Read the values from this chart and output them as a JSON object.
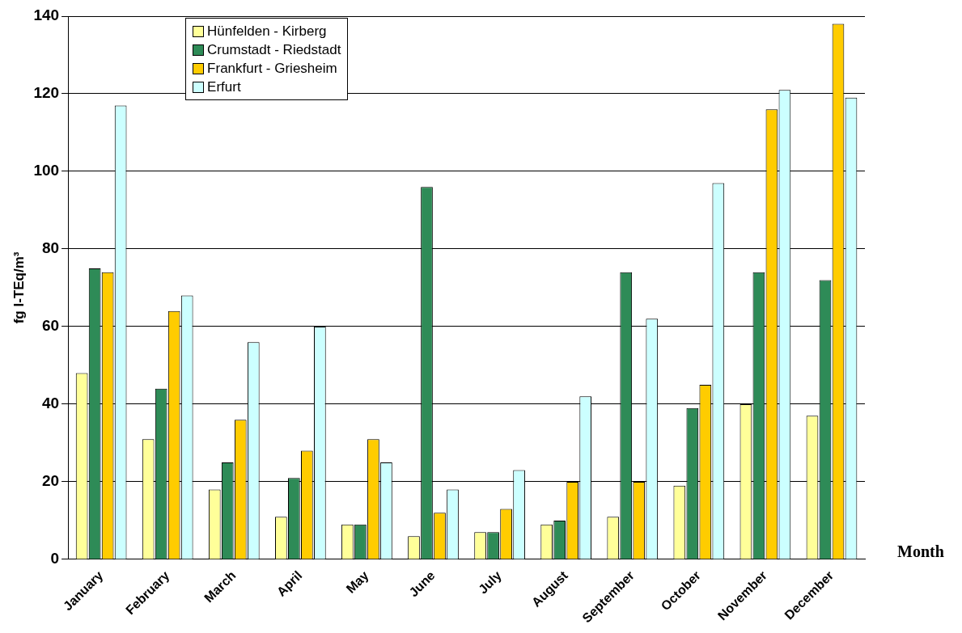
{
  "chart_data": {
    "type": "bar",
    "xlabel": "Month",
    "ylabel": "fg I-TEq/m³",
    "categories": [
      "January",
      "February",
      "March",
      "April",
      "May",
      "June",
      "July",
      "August",
      "September",
      "October",
      "November",
      "December"
    ],
    "series": [
      {
        "name": "Hünfelden - Kirberg",
        "color": "#ffff99",
        "values": [
          48,
          31,
          18,
          11,
          9,
          6,
          7,
          9,
          11,
          19,
          40,
          37
        ]
      },
      {
        "name": "Crumstadt - Riedstadt",
        "color": "#2e8b57",
        "values": [
          75,
          44,
          25,
          21,
          9,
          96,
          7,
          10,
          74,
          39,
          74,
          72
        ]
      },
      {
        "name": "Frankfurt - Griesheim",
        "color": "#ffcc00",
        "values": [
          74,
          64,
          36,
          28,
          31,
          12,
          13,
          20,
          20,
          45,
          116,
          138
        ]
      },
      {
        "name": "Erfurt",
        "color": "#ccffff",
        "values": [
          117,
          68,
          56,
          60,
          25,
          18,
          23,
          42,
          62,
          97,
          121,
          119
        ]
      }
    ],
    "ylim": [
      0,
      140
    ],
    "yticks": [
      0,
      20,
      40,
      60,
      80,
      100,
      120,
      140
    ],
    "grid": "y",
    "legend": "top left"
  }
}
